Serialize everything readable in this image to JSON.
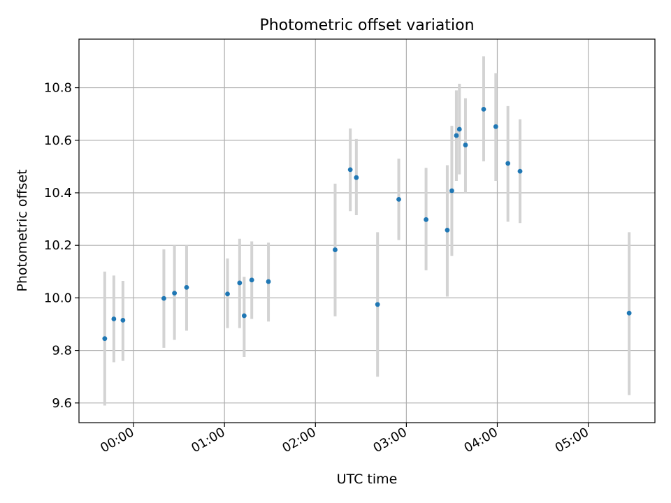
{
  "chart_data": {
    "type": "scatter",
    "title": "Photometric offset variation",
    "xlabel": "UTC time",
    "ylabel": "Photometric offset",
    "x_axis_kind": "time",
    "xlim": [
      "23:24",
      "05:44"
    ],
    "ylim": [
      9.525,
      10.985
    ],
    "x_ticks": [
      "00:00",
      "01:00",
      "02:00",
      "03:00",
      "04:00",
      "05:00"
    ],
    "y_ticks": [
      "9.6",
      "9.8",
      "10.0",
      "10.2",
      "10.4",
      "10.6",
      "10.8"
    ],
    "grid": true,
    "legend": "none",
    "colors": {
      "points": "#1f77b4",
      "errorbars": "#d3d3d3",
      "grid": "#b0b0b0",
      "axes": "#000000"
    },
    "points": [
      {
        "x": "23:41",
        "y": 9.845,
        "err_low": 9.59,
        "err_high": 10.1
      },
      {
        "x": "23:47",
        "y": 9.92,
        "err_low": 9.755,
        "err_high": 10.085
      },
      {
        "x": "23:53",
        "y": 9.915,
        "err_low": 9.76,
        "err_high": 10.065
      },
      {
        "x": "00:20",
        "y": 9.998,
        "err_low": 9.81,
        "err_high": 10.185
      },
      {
        "x": "00:27",
        "y": 10.018,
        "err_low": 9.84,
        "err_high": 10.2
      },
      {
        "x": "00:35",
        "y": 10.04,
        "err_low": 9.875,
        "err_high": 10.2
      },
      {
        "x": "01:02",
        "y": 10.015,
        "err_low": 9.885,
        "err_high": 10.15
      },
      {
        "x": "01:10",
        "y": 10.057,
        "err_low": 9.885,
        "err_high": 10.225
      },
      {
        "x": "01:13",
        "y": 9.932,
        "err_low": 9.775,
        "err_high": 10.08
      },
      {
        "x": "01:18",
        "y": 10.068,
        "err_low": 9.92,
        "err_high": 10.215
      },
      {
        "x": "01:29",
        "y": 10.062,
        "err_low": 9.91,
        "err_high": 10.21
      },
      {
        "x": "02:13",
        "y": 10.183,
        "err_low": 9.93,
        "err_high": 10.435
      },
      {
        "x": "02:23",
        "y": 10.488,
        "err_low": 10.33,
        "err_high": 10.645
      },
      {
        "x": "02:27",
        "y": 10.458,
        "err_low": 10.315,
        "err_high": 10.605
      },
      {
        "x": "02:41",
        "y": 9.975,
        "err_low": 9.7,
        "err_high": 10.25
      },
      {
        "x": "02:55",
        "y": 10.375,
        "err_low": 10.22,
        "err_high": 10.53
      },
      {
        "x": "03:13",
        "y": 10.298,
        "err_low": 10.105,
        "err_high": 10.495
      },
      {
        "x": "03:27",
        "y": 10.258,
        "err_low": 10.005,
        "err_high": 10.505
      },
      {
        "x": "03:30",
        "y": 10.408,
        "err_low": 10.16,
        "err_high": 10.655
      },
      {
        "x": "03:33",
        "y": 10.618,
        "err_low": 10.445,
        "err_high": 10.79
      },
      {
        "x": "03:35",
        "y": 10.642,
        "err_low": 10.47,
        "err_high": 10.815
      },
      {
        "x": "03:39",
        "y": 10.582,
        "err_low": 10.4,
        "err_high": 10.76
      },
      {
        "x": "03:51",
        "y": 10.718,
        "err_low": 10.52,
        "err_high": 10.92
      },
      {
        "x": "03:59",
        "y": 10.652,
        "err_low": 10.445,
        "err_high": 10.855
      },
      {
        "x": "04:07",
        "y": 10.512,
        "err_low": 10.29,
        "err_high": 10.73
      },
      {
        "x": "04:15",
        "y": 10.482,
        "err_low": 10.285,
        "err_high": 10.68
      },
      {
        "x": "05:27",
        "y": 9.942,
        "err_low": 9.63,
        "err_high": 10.25
      }
    ]
  }
}
